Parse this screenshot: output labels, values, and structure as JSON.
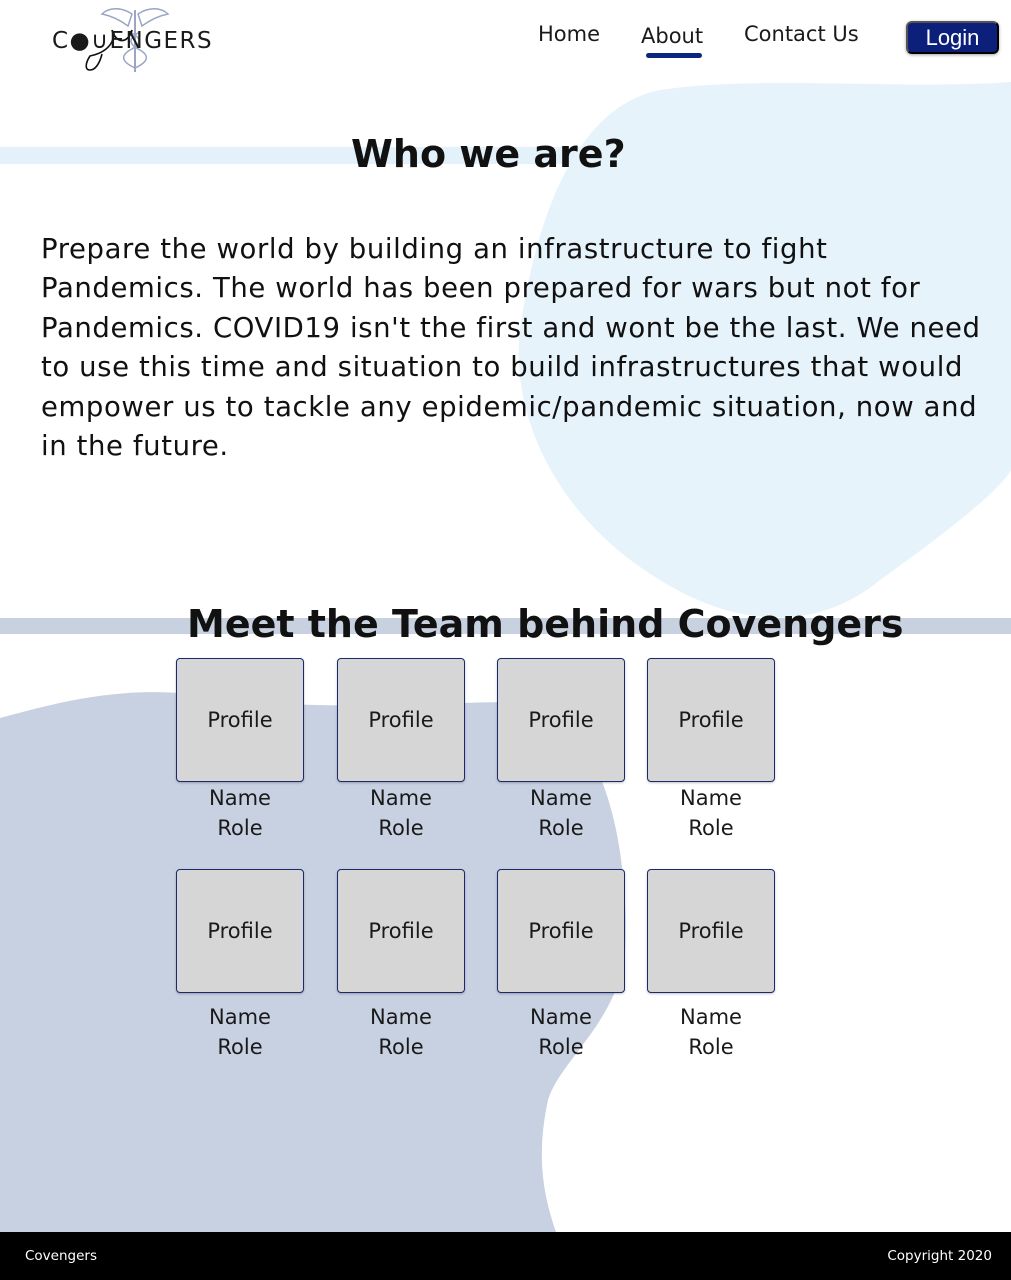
{
  "brand": {
    "logo_text": "C●∪ENGERS"
  },
  "nav": {
    "items": [
      {
        "label": "Home"
      },
      {
        "label": "About"
      },
      {
        "label": "Contact Us"
      }
    ],
    "active": "About",
    "login_label": "Login"
  },
  "about": {
    "title": "Who we are?",
    "body": "Prepare the world by building an infrastructure to fight Pandemics. The world has been prepared for wars but not for Pandemics. COVID19 isn't the first and wont be the last. We need to use this time and situation to build infrastructures that would empower us to tackle any epidemic/pandemic situation, now and in the future."
  },
  "team": {
    "title": "Meet the Team behind Covengers",
    "members": [
      {
        "profile": "Profile",
        "name": "Name",
        "role": "Role"
      },
      {
        "profile": "Profile",
        "name": "Name",
        "role": "Role"
      },
      {
        "profile": "Profile",
        "name": "Name",
        "role": "Role"
      },
      {
        "profile": "Profile",
        "name": "Name",
        "role": "Role"
      },
      {
        "profile": "Profile",
        "name": "Name",
        "role": "Role"
      },
      {
        "profile": "Profile",
        "name": "Name",
        "role": "Role"
      },
      {
        "profile": "Profile",
        "name": "Name",
        "role": "Role"
      },
      {
        "profile": "Profile",
        "name": "Name",
        "role": "Role"
      }
    ]
  },
  "footer": {
    "left": "Covengers",
    "right": "Copyright 2020"
  },
  "colors": {
    "accent": "#0c1f7a",
    "light_blob": "#e6f3fb",
    "dark_blob": "#c8d1e1",
    "profile_bg": "#d6d6d6",
    "footer_bg": "#000000"
  }
}
